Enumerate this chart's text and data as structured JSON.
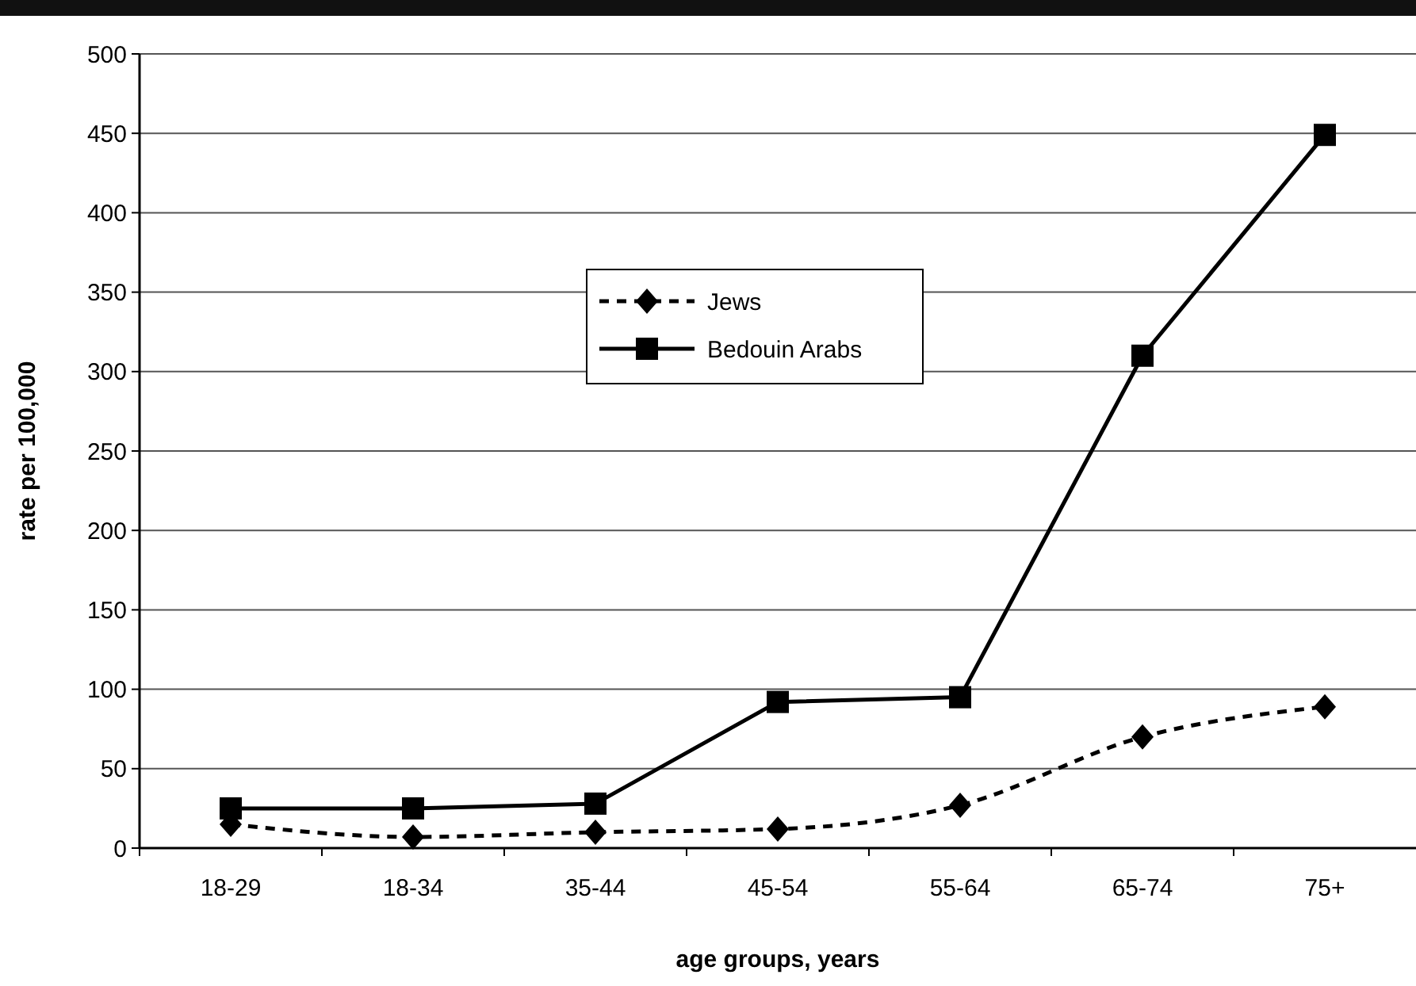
{
  "chart_data": {
    "type": "line",
    "xlabel": "age groups, years",
    "ylabel": "rate per 100,000",
    "categories": [
      "18-29",
      "18-34",
      "35-44",
      "45-54",
      "55-64",
      "65-74",
      "75+"
    ],
    "series": [
      {
        "name": "Jews",
        "color": "#000000",
        "marker": "diamond",
        "line_style": "dashed",
        "values": [
          15,
          7,
          10,
          12,
          27,
          70,
          89
        ]
      },
      {
        "name": "Bedouin Arabs",
        "color": "#000000",
        "marker": "square",
        "line_style": "solid",
        "values": [
          25,
          25,
          28,
          92,
          95,
          310,
          449
        ]
      }
    ],
    "ylim": [
      0,
      500
    ],
    "yticks": [
      0,
      50,
      100,
      150,
      200,
      250,
      300,
      350,
      400,
      450,
      500
    ],
    "grid": "y",
    "legend": "top"
  }
}
